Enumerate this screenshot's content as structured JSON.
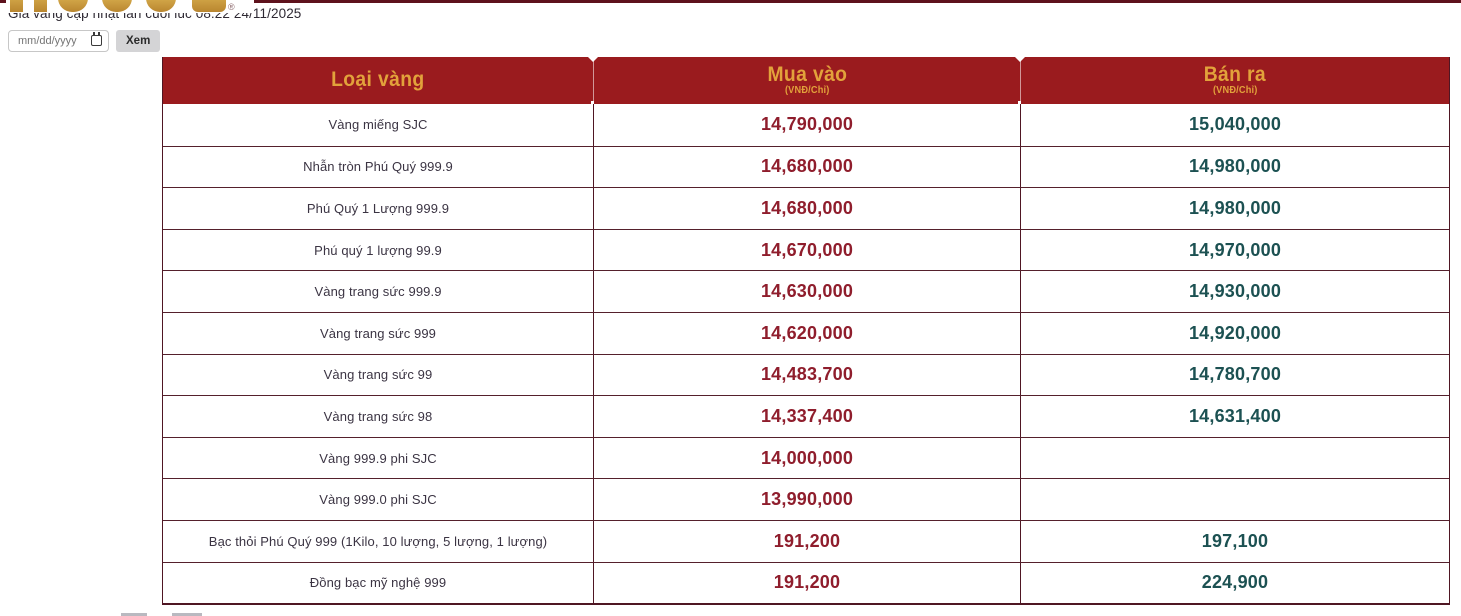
{
  "page": {
    "update_text": "Giá vàng cập nhật lần cuối lúc 08:22 24/11/2025",
    "registered_mark": "®",
    "accent_colors": {
      "top_rule": "#5e121d",
      "logo_gold": "#c79a3e",
      "header_bg": "#9a1b1e",
      "header_text": "#e2a23b",
      "buy_value": "#8f1d2c",
      "sell_value": "#1c5152",
      "table_border": "#4f1623",
      "row_label": "#3b3443"
    }
  },
  "controls": {
    "date_placeholder": "mm/dd/yyyy",
    "view_button_label": "Xem",
    "calendar_icon": "calendar-icon"
  },
  "table": {
    "header": {
      "type_label": "Loại vàng",
      "buy_label": "Mua vào",
      "buy_unit": "(VNĐ/Chỉ)",
      "sell_label": "Bán ra",
      "sell_unit": "(VNĐ/Chỉ)"
    },
    "rows": [
      {
        "type": "Vàng miếng SJC",
        "buy": "14,790,000",
        "sell": "15,040,000"
      },
      {
        "type": "Nhẫn tròn Phú Quý 999.9",
        "buy": "14,680,000",
        "sell": "14,980,000"
      },
      {
        "type": "Phú Quý 1 Lượng 999.9",
        "buy": "14,680,000",
        "sell": "14,980,000"
      },
      {
        "type": "Phú quý 1 lượng 99.9",
        "buy": "14,670,000",
        "sell": "14,970,000"
      },
      {
        "type": "Vàng trang sức 999.9",
        "buy": "14,630,000",
        "sell": "14,930,000"
      },
      {
        "type": "Vàng trang sức 999",
        "buy": "14,620,000",
        "sell": "14,920,000"
      },
      {
        "type": "Vàng trang sức 99",
        "buy": "14,483,700",
        "sell": "14,780,700"
      },
      {
        "type": "Vàng trang sức 98",
        "buy": "14,337,400",
        "sell": "14,631,400"
      },
      {
        "type": "Vàng 999.9 phi SJC",
        "buy": "14,000,000",
        "sell": ""
      },
      {
        "type": "Vàng 999.0 phi SJC",
        "buy": "13,990,000",
        "sell": ""
      },
      {
        "type": "Bạc thỏi Phú Quý 999 (1Kilo, 10 lượng, 5 lượng, 1 lượng)",
        "buy": "191,200",
        "sell": "197,100"
      },
      {
        "type": "Đồng bạc mỹ nghệ 999",
        "buy": "191,200",
        "sell": "224,900"
      }
    ]
  }
}
